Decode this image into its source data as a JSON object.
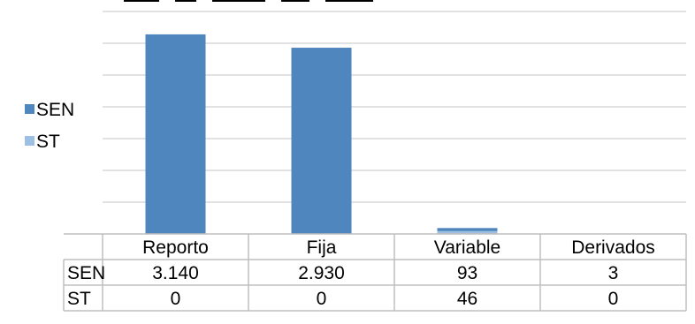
{
  "chart_data": {
    "type": "bar",
    "title": "",
    "xlabel": "",
    "ylabel": "",
    "categories": [
      "Reporto",
      "Fija",
      "Variable",
      "Derivados"
    ],
    "series": [
      {
        "name": "SEN",
        "values": [
          3140,
          2930,
          93,
          3
        ],
        "color": "#4F86BE",
        "labels": [
          "3.140",
          "2.930",
          "93",
          "3"
        ]
      },
      {
        "name": "ST",
        "values": [
          0,
          0,
          46,
          0
        ],
        "color": "#9DBFE3",
        "labels": [
          "0",
          "0",
          "46",
          "0"
        ]
      }
    ],
    "ylim": [
      0,
      3500
    ],
    "grid": true,
    "legend": "left",
    "data_table": true,
    "gridline_color": "#D9D9D9"
  }
}
